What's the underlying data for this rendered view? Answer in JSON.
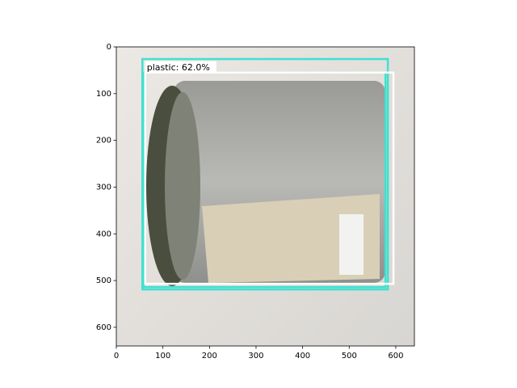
{
  "chart_data": {
    "type": "image",
    "xlim": [
      0,
      640
    ],
    "ylim": [
      640,
      0
    ],
    "xticks": [
      0,
      100,
      200,
      300,
      400,
      500,
      600
    ],
    "yticks": [
      0,
      100,
      200,
      300,
      400,
      500,
      600
    ],
    "boxes": [
      {
        "x": [
          56,
          583
        ],
        "y": [
          26,
          519
        ],
        "color": "#40e0d0"
      },
      {
        "x": [
          59,
          578
        ],
        "y": [
          55,
          514
        ],
        "color": "#40e0d0"
      },
      {
        "x": [
          62,
          595
        ],
        "y": [
          55,
          507
        ],
        "color": "#ffffff",
        "label": "plastic: 62.0%"
      }
    ]
  }
}
